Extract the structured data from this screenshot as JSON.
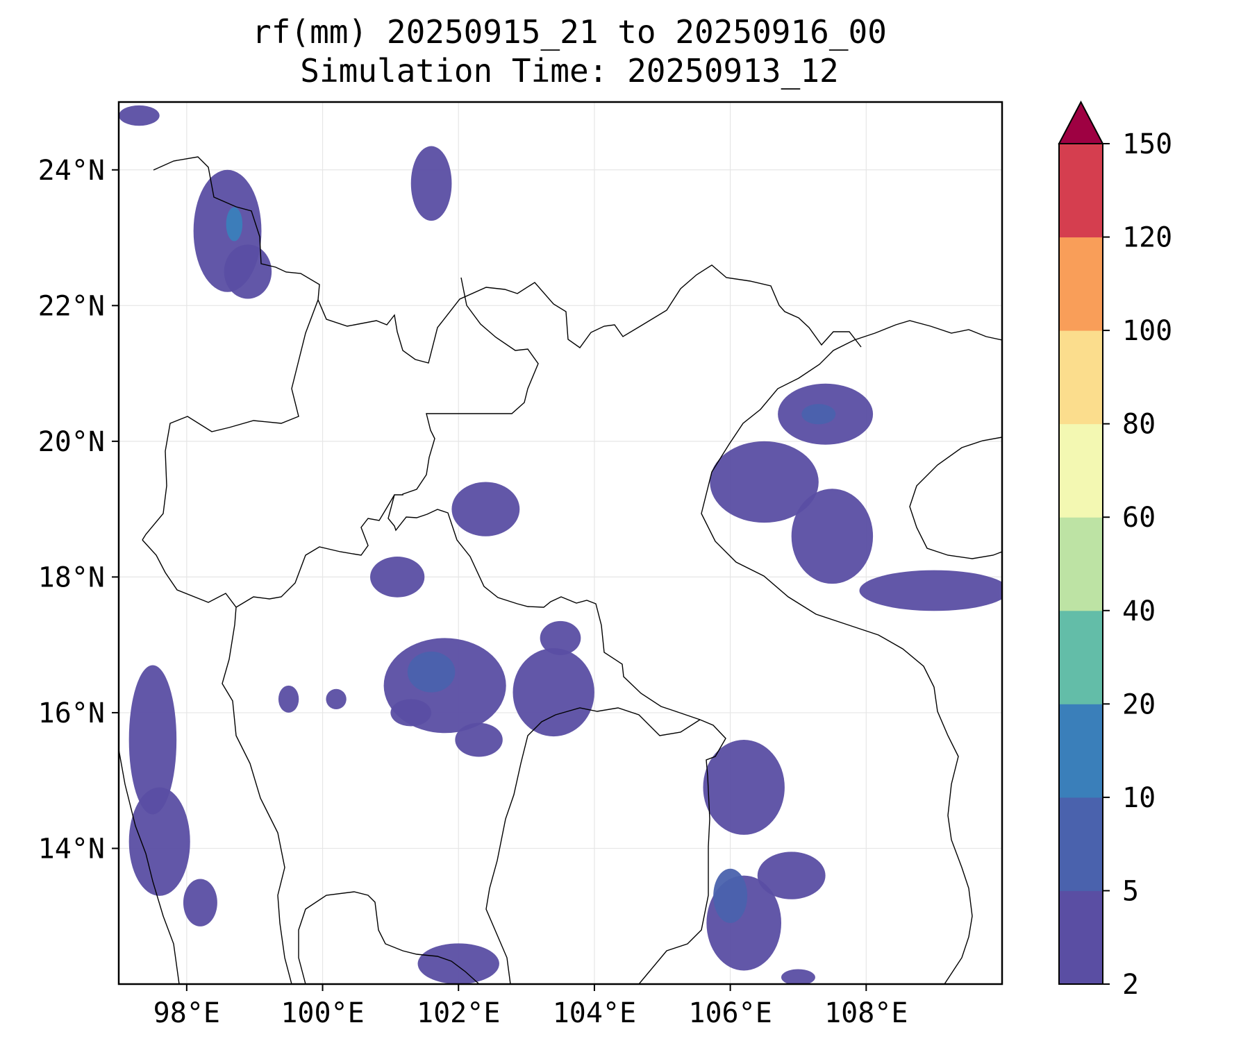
{
  "title": {
    "line1": "rf(mm) 20250915_21 to 20250916_00",
    "line2": "Simulation Time: 20250913_12"
  },
  "map": {
    "lon_range": [
      97,
      110
    ],
    "lat_range": [
      12,
      25
    ],
    "lon_ticks": [
      {
        "value": 98,
        "label": "98°E"
      },
      {
        "value": 100,
        "label": "100°E"
      },
      {
        "value": 102,
        "label": "102°E"
      },
      {
        "value": 104,
        "label": "104°E"
      },
      {
        "value": 106,
        "label": "106°E"
      },
      {
        "value": 108,
        "label": "108°E"
      }
    ],
    "lat_ticks": [
      {
        "value": 24,
        "label": "24°N"
      },
      {
        "value": 22,
        "label": "22°N"
      },
      {
        "value": 20,
        "label": "20°N"
      },
      {
        "value": 18,
        "label": "18°N"
      },
      {
        "value": 16,
        "label": "16°N"
      },
      {
        "value": 14,
        "label": "14°N"
      }
    ],
    "grid": true,
    "rain_cells": [
      {
        "lon": 98.6,
        "lat": 23.1,
        "rx": 0.5,
        "ry": 0.9,
        "level": 0
      },
      {
        "lon": 98.7,
        "lat": 23.2,
        "rx": 0.12,
        "ry": 0.25,
        "level": 2
      },
      {
        "lon": 98.9,
        "lat": 22.5,
        "rx": 0.35,
        "ry": 0.4,
        "level": 0
      },
      {
        "lon": 101.6,
        "lat": 23.8,
        "rx": 0.3,
        "ry": 0.55,
        "level": 0
      },
      {
        "lon": 107.4,
        "lat": 20.4,
        "rx": 0.7,
        "ry": 0.45,
        "level": 0
      },
      {
        "lon": 107.3,
        "lat": 20.4,
        "rx": 0.25,
        "ry": 0.15,
        "level": 1
      },
      {
        "lon": 106.5,
        "lat": 19.4,
        "rx": 0.8,
        "ry": 0.6,
        "level": 0
      },
      {
        "lon": 107.5,
        "lat": 18.6,
        "rx": 0.6,
        "ry": 0.7,
        "level": 0
      },
      {
        "lon": 109.0,
        "lat": 17.8,
        "rx": 1.1,
        "ry": 0.3,
        "level": 0
      },
      {
        "lon": 102.4,
        "lat": 19.0,
        "rx": 0.5,
        "ry": 0.4,
        "level": 0
      },
      {
        "lon": 101.1,
        "lat": 18.0,
        "rx": 0.4,
        "ry": 0.3,
        "level": 0
      },
      {
        "lon": 101.8,
        "lat": 16.4,
        "rx": 0.9,
        "ry": 0.7,
        "level": 0
      },
      {
        "lon": 101.6,
        "lat": 16.6,
        "rx": 0.35,
        "ry": 0.3,
        "level": 1
      },
      {
        "lon": 103.4,
        "lat": 16.3,
        "rx": 0.6,
        "ry": 0.65,
        "level": 0
      },
      {
        "lon": 102.3,
        "lat": 15.6,
        "rx": 0.35,
        "ry": 0.25,
        "level": 0
      },
      {
        "lon": 106.2,
        "lat": 14.9,
        "rx": 0.6,
        "ry": 0.7,
        "level": 0
      },
      {
        "lon": 106.2,
        "lat": 12.9,
        "rx": 0.55,
        "ry": 0.7,
        "level": 0
      },
      {
        "lon": 106.0,
        "lat": 13.3,
        "rx": 0.25,
        "ry": 0.4,
        "level": 1
      },
      {
        "lon": 106.9,
        "lat": 13.6,
        "rx": 0.5,
        "ry": 0.35,
        "level": 0
      },
      {
        "lon": 97.5,
        "lat": 15.6,
        "rx": 0.35,
        "ry": 1.1,
        "level": 0
      },
      {
        "lon": 97.6,
        "lat": 14.1,
        "rx": 0.45,
        "ry": 0.8,
        "level": 0
      },
      {
        "lon": 98.2,
        "lat": 13.2,
        "rx": 0.25,
        "ry": 0.35,
        "level": 0
      },
      {
        "lon": 102.0,
        "lat": 12.3,
        "rx": 0.6,
        "ry": 0.3,
        "level": 0
      },
      {
        "lon": 101.3,
        "lat": 16.0,
        "rx": 0.3,
        "ry": 0.2,
        "level": 0
      },
      {
        "lon": 103.5,
        "lat": 17.1,
        "rx": 0.3,
        "ry": 0.25,
        "level": 0
      },
      {
        "lon": 100.2,
        "lat": 16.2,
        "rx": 0.15,
        "ry": 0.15,
        "level": 0
      },
      {
        "lon": 99.5,
        "lat": 16.2,
        "rx": 0.15,
        "ry": 0.2,
        "level": 0
      },
      {
        "lon": 97.3,
        "lat": 24.8,
        "rx": 0.3,
        "ry": 0.15,
        "level": 0
      },
      {
        "lon": 107.0,
        "lat": 12.1,
        "rx": 0.25,
        "ry": 0.12,
        "level": 0
      }
    ]
  },
  "colorbar": {
    "levels": [
      "2",
      "5",
      "10",
      "20",
      "40",
      "60",
      "80",
      "100",
      "120",
      "150"
    ],
    "colors": [
      "#5a4ea3",
      "#4a62ad",
      "#3a7fba",
      "#63bda8",
      "#bde3a4",
      "#f3f8b2",
      "#fbdd8d",
      "#f99e59",
      "#d53e4f"
    ],
    "extend_color": "#9e0142"
  }
}
